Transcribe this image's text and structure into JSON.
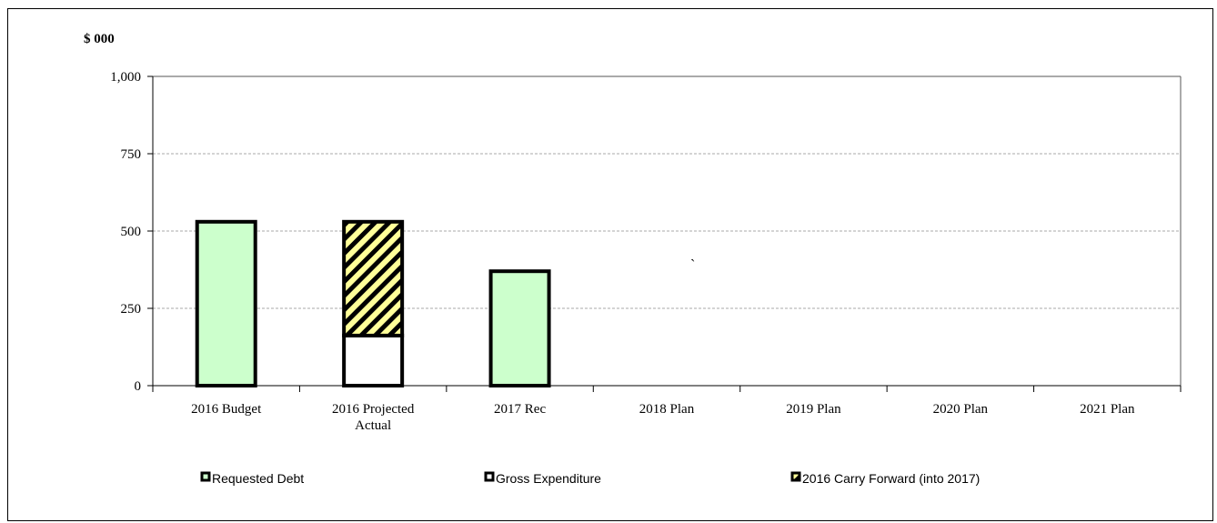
{
  "chart_data": {
    "type": "bar",
    "title": "",
    "unit_label": "$ 000",
    "xlabel": "",
    "ylabel": "",
    "ylim": [
      0,
      1000
    ],
    "yticks": [
      0,
      250,
      500,
      750,
      1000
    ],
    "ytick_labels": [
      "0",
      "250",
      "500",
      "750",
      "1,000"
    ],
    "grid": true,
    "legend_position": "bottom",
    "categories": [
      "2016 Budget",
      "2016 Projected Actual",
      "2017 Rec",
      "2018 Plan",
      "2019 Plan",
      "2020 Plan",
      "2021 Plan"
    ],
    "category_label_lines": [
      [
        "2016 Budget"
      ],
      [
        "2016 Projected",
        "Actual"
      ],
      [
        "2017 Rec"
      ],
      [
        "2018 Plan"
      ],
      [
        "2019 Plan"
      ],
      [
        "2020 Plan"
      ],
      [
        "2021 Plan"
      ]
    ],
    "series": [
      {
        "name": "Requested Debt",
        "color": "#ccffcc",
        "pattern": "solid",
        "values": [
          530,
          0,
          370,
          0,
          0,
          0,
          0
        ]
      },
      {
        "name": "Gross Expenditure",
        "color": "#ffffff",
        "pattern": "solid",
        "values": [
          0,
          162,
          0,
          0,
          0,
          0,
          0
        ]
      },
      {
        "name": "2016 Carry Forward (into 2017)",
        "color": "#ffff99",
        "pattern": "diagonal-hatch",
        "values": [
          0,
          368,
          0,
          0,
          0,
          0,
          0
        ]
      }
    ],
    "stacked": true,
    "annotation": "`"
  }
}
